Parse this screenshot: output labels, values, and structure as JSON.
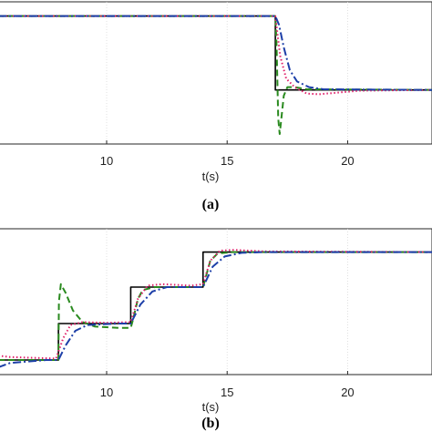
{
  "chart_data": [
    {
      "type": "line",
      "panel_label": "(a)",
      "xlabel": "t(s)",
      "ylabel": "",
      "xlim": [
        5.5,
        23.5
      ],
      "ylim": [
        0,
        1
      ],
      "x_ticks": [
        10,
        15,
        20
      ],
      "x_tick_labels": [
        "10",
        "15",
        "20"
      ],
      "grid": true,
      "series": [
        {
          "style": "solid",
          "color": "#000000",
          "points": [
            [
              5.5,
              0.9
            ],
            [
              17.0,
              0.9
            ],
            [
              17.0,
              0.38
            ],
            [
              23.5,
              0.38
            ]
          ]
        },
        {
          "style": "dashed",
          "color": "#2a8a1f",
          "points": [
            [
              5.5,
              0.9
            ],
            [
              17.0,
              0.9
            ],
            [
              17.05,
              0.7
            ],
            [
              17.12,
              0.18
            ],
            [
              17.18,
              0.07
            ],
            [
              17.25,
              0.18
            ],
            [
              17.35,
              0.34
            ],
            [
              17.5,
              0.4
            ],
            [
              17.8,
              0.4
            ],
            [
              18.3,
              0.385
            ],
            [
              23.5,
              0.38
            ]
          ]
        },
        {
          "style": "dotted",
          "color": "#e0206a",
          "points": [
            [
              5.5,
              0.9
            ],
            [
              17.0,
              0.9
            ],
            [
              17.2,
              0.62
            ],
            [
              17.45,
              0.46
            ],
            [
              17.8,
              0.4
            ],
            [
              18.3,
              0.355
            ],
            [
              18.8,
              0.35
            ],
            [
              19.5,
              0.36
            ],
            [
              20.5,
              0.375
            ],
            [
              23.5,
              0.38
            ]
          ]
        },
        {
          "style": "dashdot",
          "color": "#1d3fa8",
          "points": [
            [
              5.5,
              0.9
            ],
            [
              17.0,
              0.9
            ],
            [
              17.15,
              0.84
            ],
            [
              17.35,
              0.68
            ],
            [
              17.6,
              0.52
            ],
            [
              17.9,
              0.44
            ],
            [
              18.4,
              0.4
            ],
            [
              19.0,
              0.385
            ],
            [
              23.5,
              0.38
            ]
          ]
        }
      ]
    },
    {
      "type": "line",
      "panel_label": "(b)",
      "xlabel": "t(s)",
      "ylabel": "",
      "xlim": [
        5.5,
        23.5
      ],
      "ylim": [
        0,
        1
      ],
      "x_ticks": [
        10,
        15,
        20
      ],
      "x_tick_labels": [
        "10",
        "15",
        "20"
      ],
      "grid": true,
      "series": [
        {
          "style": "solid",
          "color": "#000000",
          "points": [
            [
              5.5,
              0.1
            ],
            [
              8.0,
              0.1
            ],
            [
              8.0,
              0.35
            ],
            [
              11.0,
              0.35
            ],
            [
              11.0,
              0.6
            ],
            [
              14.0,
              0.6
            ],
            [
              14.0,
              0.84
            ],
            [
              23.5,
              0.84
            ]
          ]
        },
        {
          "style": "dashed",
          "color": "#2a8a1f",
          "points": [
            [
              5.5,
              0.1
            ],
            [
              8.0,
              0.1
            ],
            [
              8.02,
              0.5
            ],
            [
              8.1,
              0.62
            ],
            [
              8.3,
              0.56
            ],
            [
              8.6,
              0.44
            ],
            [
              9.0,
              0.36
            ],
            [
              9.5,
              0.33
            ],
            [
              10.5,
              0.32
            ],
            [
              11.0,
              0.32
            ],
            [
              11.1,
              0.38
            ],
            [
              11.3,
              0.52
            ],
            [
              11.5,
              0.58
            ],
            [
              12.0,
              0.6
            ],
            [
              14.0,
              0.6
            ],
            [
              14.1,
              0.66
            ],
            [
              14.3,
              0.78
            ],
            [
              14.6,
              0.83
            ],
            [
              15.2,
              0.84
            ],
            [
              23.5,
              0.84
            ]
          ]
        },
        {
          "style": "dotted",
          "color": "#e0206a",
          "points": [
            [
              5.5,
              0.13
            ],
            [
              6.0,
              0.12
            ],
            [
              7.9,
              0.11
            ],
            [
              8.2,
              0.25
            ],
            [
              8.5,
              0.34
            ],
            [
              9.0,
              0.36
            ],
            [
              10.0,
              0.355
            ],
            [
              11.0,
              0.36
            ],
            [
              11.3,
              0.52
            ],
            [
              11.7,
              0.61
            ],
            [
              12.3,
              0.62
            ],
            [
              13.5,
              0.61
            ],
            [
              14.0,
              0.62
            ],
            [
              14.3,
              0.78
            ],
            [
              14.7,
              0.85
            ],
            [
              15.3,
              0.855
            ],
            [
              16.5,
              0.845
            ],
            [
              23.5,
              0.84
            ]
          ]
        },
        {
          "style": "dashdot",
          "color": "#1d3fa8",
          "points": [
            [
              5.5,
              0.05
            ],
            [
              6.0,
              0.08
            ],
            [
              7.5,
              0.1
            ],
            [
              8.0,
              0.1
            ],
            [
              8.3,
              0.2
            ],
            [
              8.7,
              0.3
            ],
            [
              9.2,
              0.34
            ],
            [
              10.5,
              0.35
            ],
            [
              11.0,
              0.35
            ],
            [
              11.4,
              0.48
            ],
            [
              11.9,
              0.57
            ],
            [
              12.5,
              0.6
            ],
            [
              14.0,
              0.6
            ],
            [
              14.4,
              0.74
            ],
            [
              14.9,
              0.81
            ],
            [
              15.6,
              0.835
            ],
            [
              16.5,
              0.84
            ],
            [
              23.5,
              0.84
            ]
          ]
        }
      ]
    }
  ]
}
